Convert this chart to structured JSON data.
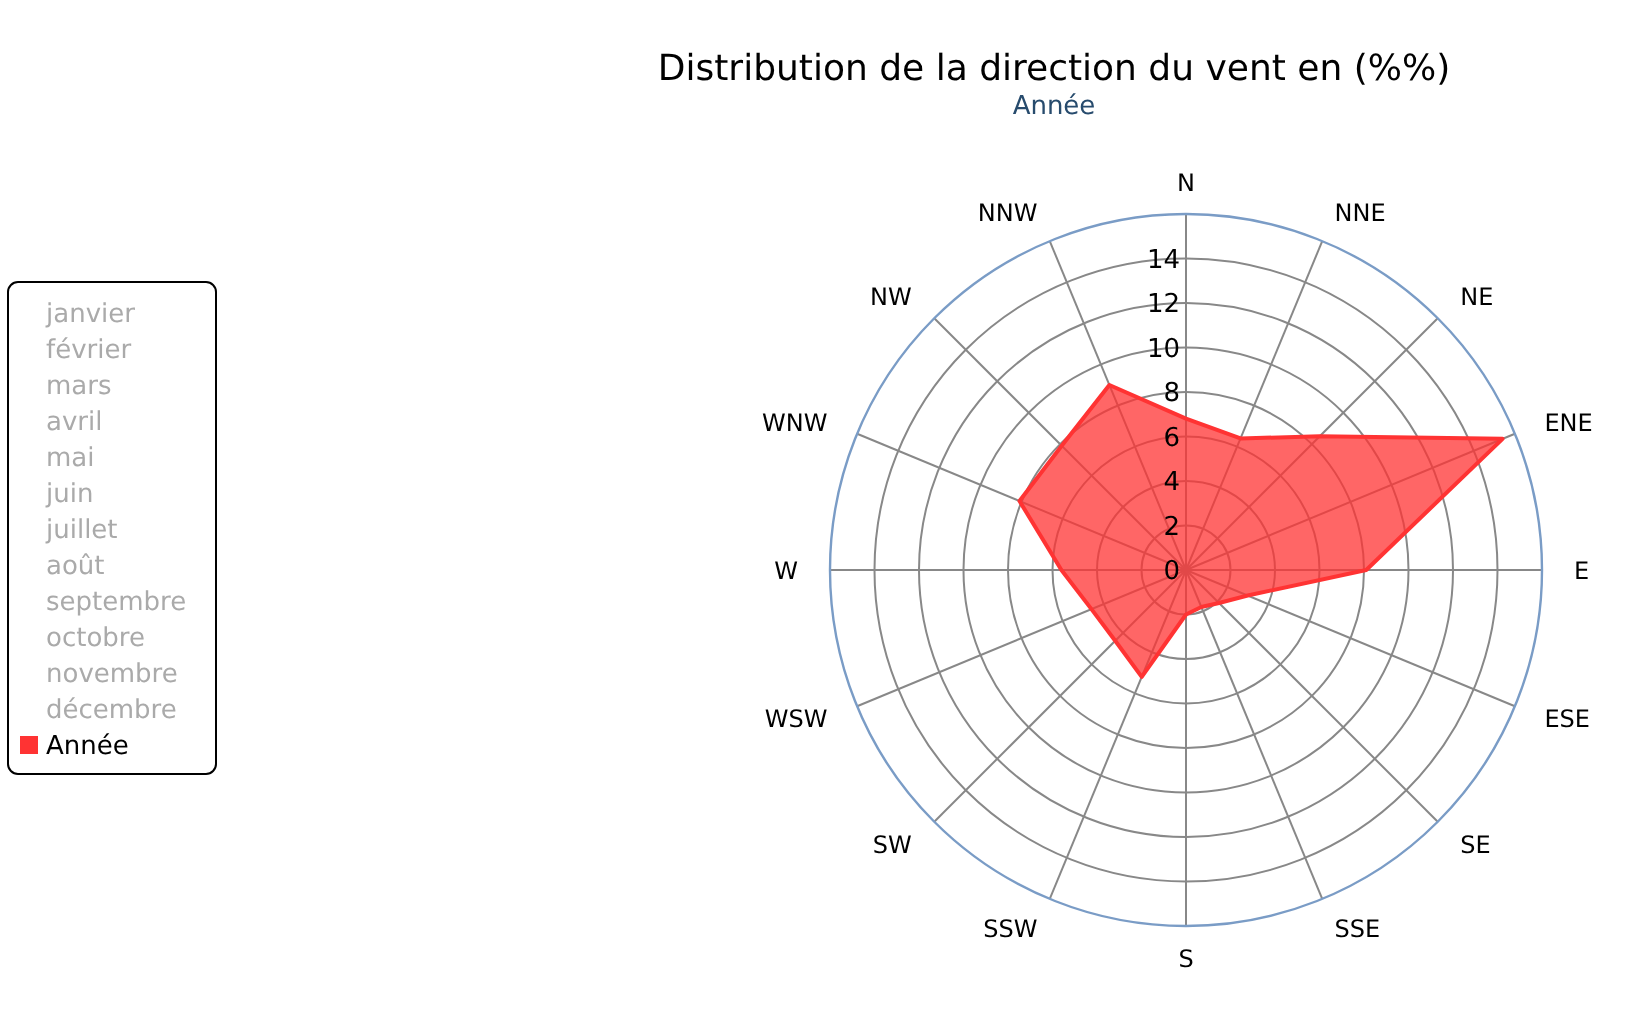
{
  "chart_data": {
    "type": "radar",
    "title": "Distribution de la direction du vent en (%%)",
    "subtitle": "Année",
    "categories": [
      "N",
      "NNE",
      "NE",
      "ENE",
      "E",
      "ESE",
      "SE",
      "SSE",
      "S",
      "SSW",
      "SW",
      "WSW",
      "W",
      "WNW",
      "NW",
      "NNW"
    ],
    "ylim": [
      0,
      16
    ],
    "yticks": [
      0,
      2,
      4,
      6,
      8,
      10,
      12,
      14
    ],
    "grid": true,
    "legend": "left",
    "annotations": [
      "janvier",
      "février",
      "mars",
      "avril",
      "mai",
      "juin",
      "juillet",
      "août",
      "septembre",
      "octobre",
      "novembre",
      "décembre"
    ],
    "series": [
      {
        "name": "Année",
        "color": "#ff3333",
        "values": [
          6.8,
          6.4,
          8.5,
          15.4,
          8.1,
          3.0,
          2.1,
          1.8,
          2.0,
          5.2,
          4.5,
          4.6,
          5.6,
          8.1,
          7.9,
          9.0
        ]
      }
    ]
  }
}
